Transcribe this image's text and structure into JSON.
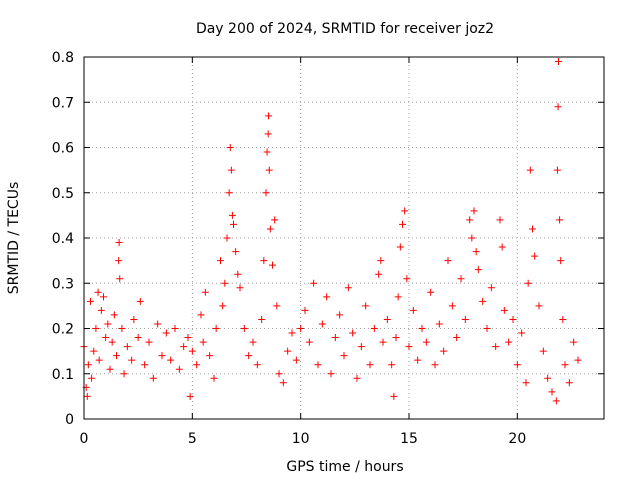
{
  "chart_data": {
    "type": "scatter",
    "title": "Day 200 of 2024, SRMTID for receiver joz2",
    "xlabel": "GPS time / hours",
    "ylabel": "SRMTID / TECUs",
    "xlim": [
      0,
      24
    ],
    "ylim": [
      0,
      0.8
    ],
    "xticks": [
      0,
      5,
      10,
      15,
      20
    ],
    "xtick_labels": [
      "0",
      "5",
      "10",
      "15",
      "20"
    ],
    "yticks": [
      0,
      0.1,
      0.2,
      0.3,
      0.4,
      0.5,
      0.6,
      0.7,
      0.8
    ],
    "ytick_labels": [
      "0",
      "0.1",
      "0.2",
      "0.3",
      "0.4",
      "0.5",
      "0.6",
      "0.7",
      "0.8"
    ],
    "grid": true,
    "marker": "+",
    "marker_color": "#ff0000",
    "series": [
      {
        "name": "joz2",
        "points": [
          [
            0.0,
            0.16
          ],
          [
            0.1,
            0.07
          ],
          [
            0.15,
            0.05
          ],
          [
            0.2,
            0.12
          ],
          [
            0.3,
            0.26
          ],
          [
            0.35,
            0.09
          ],
          [
            0.45,
            0.15
          ],
          [
            0.55,
            0.2
          ],
          [
            0.65,
            0.28
          ],
          [
            0.7,
            0.13
          ],
          [
            0.8,
            0.24
          ],
          [
            0.9,
            0.27
          ],
          [
            1.0,
            0.18
          ],
          [
            1.1,
            0.21
          ],
          [
            1.2,
            0.11
          ],
          [
            1.3,
            0.17
          ],
          [
            1.4,
            0.23
          ],
          [
            1.5,
            0.14
          ],
          [
            1.6,
            0.35
          ],
          [
            1.62,
            0.39
          ],
          [
            1.65,
            0.31
          ],
          [
            1.75,
            0.2
          ],
          [
            1.85,
            0.1
          ],
          [
            2.0,
            0.16
          ],
          [
            2.2,
            0.13
          ],
          [
            2.3,
            0.22
          ],
          [
            2.5,
            0.18
          ],
          [
            2.6,
            0.26
          ],
          [
            2.8,
            0.12
          ],
          [
            3.0,
            0.17
          ],
          [
            3.2,
            0.09
          ],
          [
            3.4,
            0.21
          ],
          [
            3.6,
            0.14
          ],
          [
            3.8,
            0.19
          ],
          [
            4.0,
            0.13
          ],
          [
            4.2,
            0.2
          ],
          [
            4.4,
            0.11
          ],
          [
            4.6,
            0.16
          ],
          [
            4.8,
            0.18
          ],
          [
            4.9,
            0.05
          ],
          [
            5.0,
            0.15
          ],
          [
            5.2,
            0.12
          ],
          [
            5.4,
            0.23
          ],
          [
            5.5,
            0.17
          ],
          [
            5.6,
            0.28
          ],
          [
            5.8,
            0.14
          ],
          [
            6.0,
            0.09
          ],
          [
            6.1,
            0.2
          ],
          [
            6.3,
            0.35
          ],
          [
            6.4,
            0.25
          ],
          [
            6.5,
            0.3
          ],
          [
            6.6,
            0.4
          ],
          [
            6.7,
            0.5
          ],
          [
            6.75,
            0.6
          ],
          [
            6.8,
            0.55
          ],
          [
            6.85,
            0.45
          ],
          [
            6.9,
            0.43
          ],
          [
            7.0,
            0.37
          ],
          [
            7.1,
            0.32
          ],
          [
            7.2,
            0.29
          ],
          [
            7.4,
            0.2
          ],
          [
            7.6,
            0.14
          ],
          [
            7.8,
            0.17
          ],
          [
            8.0,
            0.12
          ],
          [
            8.2,
            0.22
          ],
          [
            8.3,
            0.35
          ],
          [
            8.4,
            0.5
          ],
          [
            8.45,
            0.59
          ],
          [
            8.5,
            0.63
          ],
          [
            8.52,
            0.67
          ],
          [
            8.55,
            0.55
          ],
          [
            8.6,
            0.42
          ],
          [
            8.7,
            0.34
          ],
          [
            8.8,
            0.44
          ],
          [
            8.9,
            0.25
          ],
          [
            9.0,
            0.1
          ],
          [
            9.2,
            0.08
          ],
          [
            9.4,
            0.15
          ],
          [
            9.6,
            0.19
          ],
          [
            9.8,
            0.13
          ],
          [
            10.0,
            0.2
          ],
          [
            10.2,
            0.24
          ],
          [
            10.4,
            0.17
          ],
          [
            10.6,
            0.3
          ],
          [
            10.8,
            0.12
          ],
          [
            11.0,
            0.21
          ],
          [
            11.2,
            0.27
          ],
          [
            11.4,
            0.1
          ],
          [
            11.6,
            0.18
          ],
          [
            11.8,
            0.23
          ],
          [
            12.0,
            0.14
          ],
          [
            12.2,
            0.29
          ],
          [
            12.4,
            0.19
          ],
          [
            12.6,
            0.09
          ],
          [
            12.8,
            0.16
          ],
          [
            13.0,
            0.25
          ],
          [
            13.2,
            0.12
          ],
          [
            13.4,
            0.2
          ],
          [
            13.6,
            0.32
          ],
          [
            13.7,
            0.35
          ],
          [
            13.8,
            0.17
          ],
          [
            14.0,
            0.22
          ],
          [
            14.2,
            0.12
          ],
          [
            14.3,
            0.05
          ],
          [
            14.4,
            0.18
          ],
          [
            14.5,
            0.27
          ],
          [
            14.6,
            0.38
          ],
          [
            14.7,
            0.43
          ],
          [
            14.8,
            0.46
          ],
          [
            14.9,
            0.31
          ],
          [
            15.0,
            0.16
          ],
          [
            15.2,
            0.24
          ],
          [
            15.4,
            0.13
          ],
          [
            15.6,
            0.2
          ],
          [
            15.8,
            0.17
          ],
          [
            16.0,
            0.28
          ],
          [
            16.2,
            0.12
          ],
          [
            16.4,
            0.21
          ],
          [
            16.6,
            0.15
          ],
          [
            16.8,
            0.35
          ],
          [
            17.0,
            0.25
          ],
          [
            17.2,
            0.18
          ],
          [
            17.4,
            0.31
          ],
          [
            17.6,
            0.22
          ],
          [
            17.8,
            0.44
          ],
          [
            17.9,
            0.4
          ],
          [
            18.0,
            0.46
          ],
          [
            18.1,
            0.37
          ],
          [
            18.2,
            0.33
          ],
          [
            18.4,
            0.26
          ],
          [
            18.6,
            0.2
          ],
          [
            18.8,
            0.29
          ],
          [
            19.0,
            0.16
          ],
          [
            19.2,
            0.44
          ],
          [
            19.3,
            0.38
          ],
          [
            19.4,
            0.24
          ],
          [
            19.6,
            0.17
          ],
          [
            19.8,
            0.22
          ],
          [
            20.0,
            0.12
          ],
          [
            20.2,
            0.19
          ],
          [
            20.4,
            0.08
          ],
          [
            20.5,
            0.3
          ],
          [
            20.6,
            0.55
          ],
          [
            20.7,
            0.42
          ],
          [
            20.8,
            0.36
          ],
          [
            21.0,
            0.25
          ],
          [
            21.2,
            0.15
          ],
          [
            21.4,
            0.09
          ],
          [
            21.6,
            0.06
          ],
          [
            21.8,
            0.04
          ],
          [
            21.85,
            0.55
          ],
          [
            21.88,
            0.69
          ],
          [
            21.9,
            0.79
          ],
          [
            21.95,
            0.44
          ],
          [
            22.0,
            0.35
          ],
          [
            22.1,
            0.22
          ],
          [
            22.2,
            0.12
          ],
          [
            22.4,
            0.08
          ],
          [
            22.6,
            0.17
          ],
          [
            22.8,
            0.13
          ]
        ]
      }
    ]
  }
}
